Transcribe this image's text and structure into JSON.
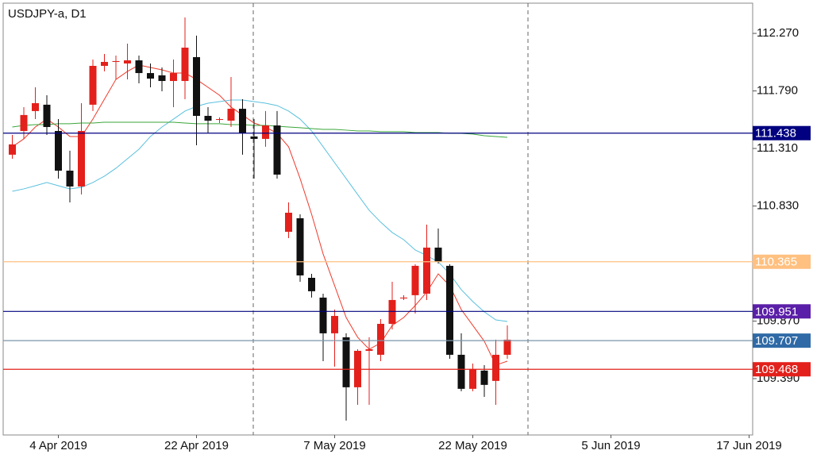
{
  "chart_data": {
    "type": "candlestick",
    "title": "USDJPY-a, D1",
    "categories": [
      null,
      null,
      null,
      null,
      "4 Apr 2019",
      null,
      null,
      null,
      null,
      null,
      null,
      null,
      null,
      null,
      null,
      null,
      "22 Apr 2019",
      null,
      null,
      null,
      null,
      null,
      null,
      null,
      null,
      null,
      null,
      null,
      "7 May 2019",
      null,
      null,
      null,
      null,
      null,
      null,
      null,
      null,
      null,
      null,
      null,
      "22 May 2019",
      null,
      null,
      null,
      null,
      null,
      null,
      null,
      null,
      null,
      null,
      null,
      "5 Jun 2019",
      null,
      null,
      null,
      null,
      null,
      null,
      null,
      null,
      null,
      null,
      null,
      "17 Jun 2019"
    ],
    "open": [
      111.258,
      111.456,
      111.622,
      111.675,
      111.456,
      111.125,
      110.993,
      111.675,
      111.999,
      112.032,
      112.019,
      112.045,
      111.939,
      111.92,
      111.873,
      111.873,
      112.072,
      111.582,
      111.549,
      111.542,
      111.641,
      111.41,
      111.39,
      111.502,
      110.615,
      110.728,
      110.231,
      110.066,
      109.768,
      109.735,
      109.318,
      109.622,
      109.589,
      109.847,
      110.059,
      110.086,
      110.099,
      110.483,
      110.331,
      109.589,
      109.305,
      109.457,
      109.371,
      109.589,
      null,
      null,
      null,
      null,
      null,
      null,
      null,
      null,
      null,
      null,
      null,
      null,
      null,
      null,
      null,
      null,
      null,
      null,
      null,
      null,
      null
    ],
    "high": [
      111.423,
      111.655,
      111.82,
      111.754,
      111.555,
      111.291,
      111.688,
      112.052,
      112.098,
      112.085,
      112.184,
      112.085,
      112.019,
      111.986,
      112.052,
      112.403,
      112.251,
      111.655,
      111.569,
      111.906,
      111.721,
      111.555,
      111.622,
      111.622,
      110.86,
      110.761,
      110.264,
      110.099,
      109.966,
      109.768,
      109.635,
      109.735,
      109.887,
      110.198,
      110.086,
      110.344,
      110.675,
      110.642,
      110.344,
      109.768,
      109.516,
      109.503,
      109.715,
      109.834,
      null,
      null,
      null,
      null,
      null,
      null,
      null,
      null,
      null,
      null,
      null,
      null,
      null,
      null,
      null,
      null,
      null,
      null,
      null,
      null,
      null
    ],
    "low": [
      111.224,
      111.39,
      111.555,
      111.423,
      111.059,
      110.86,
      110.926,
      111.622,
      111.953,
      111.886,
      111.886,
      111.853,
      111.82,
      111.787,
      111.655,
      111.721,
      111.337,
      111.436,
      111.522,
      111.489,
      111.258,
      111.059,
      111.324,
      111.059,
      110.562,
      110.198,
      110.066,
      109.536,
      109.49,
      109.04,
      109.172,
      109.172,
      109.536,
      109.801,
      110.046,
      109.933,
      110.046,
      110.35,
      109.556,
      109.285,
      109.285,
      109.238,
      109.172,
      109.556,
      null,
      null,
      null,
      null,
      null,
      null,
      null,
      null,
      null,
      null,
      null,
      null,
      null,
      null,
      null,
      null,
      null,
      null,
      null,
      null,
      null
    ],
    "close": [
      111.344,
      111.589,
      111.688,
      111.489,
      111.125,
      110.993,
      111.456,
      111.999,
      112.032,
      112.039,
      112.045,
      111.939,
      111.893,
      111.873,
      111.939,
      112.151,
      111.582,
      111.542,
      111.555,
      111.641,
      111.436,
      111.39,
      111.502,
      111.092,
      110.774,
      110.251,
      110.119,
      109.768,
      109.913,
      109.318,
      109.622,
      109.635,
      109.847,
      110.046,
      110.066,
      110.331,
      110.483,
      110.364,
      109.589,
      109.305,
      109.47,
      109.338,
      109.589,
      109.715,
      null,
      null,
      null,
      null,
      null,
      null,
      null,
      null,
      null,
      null,
      null,
      null,
      null,
      null,
      null,
      null,
      null,
      null,
      null,
      null,
      null
    ],
    "up_color": "#e3201b",
    "down_color": "#111111",
    "moving_averages": [
      {
        "color": "#ef3b2c",
        "values": [
          111.324,
          111.39,
          111.489,
          111.555,
          111.489,
          111.41,
          111.41,
          111.555,
          111.721,
          111.886,
          111.953,
          112.006,
          111.986,
          111.966,
          111.939,
          111.939,
          111.886,
          111.82,
          111.754,
          111.655,
          111.589,
          111.522,
          111.489,
          111.436,
          111.324,
          111.059,
          110.761,
          110.43,
          110.165,
          109.9,
          109.735,
          109.635,
          109.688,
          109.834,
          109.9,
          110.0,
          110.112,
          110.264,
          110.165,
          109.966,
          109.834,
          109.702,
          109.503,
          109.536,
          null,
          null,
          null,
          null,
          null,
          null,
          null,
          null,
          null,
          null,
          null,
          null,
          null,
          null,
          null,
          null,
          null,
          null,
          null,
          null,
          null
        ]
      },
      {
        "color": "#5bc0de",
        "values": [
          110.953,
          110.973,
          110.999,
          111.026,
          110.999,
          110.973,
          110.986,
          111.026,
          111.079,
          111.145,
          111.224,
          111.304,
          111.41,
          111.489,
          111.555,
          111.622,
          111.661,
          111.688,
          111.701,
          111.714,
          111.714,
          111.701,
          111.688,
          111.668,
          111.622,
          111.555,
          111.456,
          111.324,
          111.191,
          111.059,
          110.926,
          110.794,
          110.695,
          110.609,
          110.549,
          110.463,
          110.417,
          110.364,
          110.264,
          110.132,
          110.033,
          109.947,
          109.88,
          109.867,
          null,
          null,
          null,
          null,
          null,
          null,
          null,
          null,
          null,
          null,
          null,
          null,
          null,
          null,
          null,
          null,
          null,
          null,
          null,
          null,
          null
        ]
      },
      {
        "color": "#3aa63a",
        "values": [
          111.489,
          111.502,
          111.509,
          111.509,
          111.516,
          111.516,
          111.522,
          111.522,
          111.529,
          111.529,
          111.529,
          111.529,
          111.529,
          111.529,
          111.529,
          111.522,
          111.516,
          111.516,
          111.516,
          111.509,
          111.509,
          111.502,
          111.502,
          111.496,
          111.489,
          111.483,
          111.476,
          111.469,
          111.469,
          111.463,
          111.456,
          111.456,
          111.45,
          111.45,
          111.45,
          111.443,
          111.443,
          111.443,
          111.436,
          111.436,
          111.43,
          111.416,
          111.41,
          111.403,
          null,
          null,
          null,
          null,
          null,
          null,
          null,
          null,
          null,
          null,
          null,
          null,
          null,
          null,
          null,
          null,
          null,
          null,
          null,
          null,
          null
        ]
      }
    ],
    "levels": [
      {
        "value": 111.438,
        "line_color": "#000080",
        "box_color": "#000080"
      },
      {
        "value": 110.365,
        "line_color": "#ffc080",
        "box_color": "#ffc080"
      },
      {
        "value": 109.951,
        "line_color": "#000080",
        "box_color": "#5a1fa8"
      },
      {
        "value": 109.707,
        "line_color": "#7a96aa",
        "box_color": "#2f6aa6"
      },
      {
        "value": 109.468,
        "line_color": "#e3201b",
        "box_color": "#e3201b"
      }
    ],
    "ylim": [
      108.92,
      112.522
    ],
    "yticks": [
      {
        "value": 109.39,
        "label": "109.390"
      },
      {
        "value": 109.87,
        "label": "109.870"
      },
      {
        "value": 110.35,
        "label": "110.350"
      },
      {
        "value": 110.83,
        "label": "110.830"
      },
      {
        "value": 111.31,
        "label": "111.310"
      },
      {
        "value": 111.79,
        "label": "111.790"
      },
      {
        "value": 112.27,
        "label": "112.270"
      }
    ]
  }
}
